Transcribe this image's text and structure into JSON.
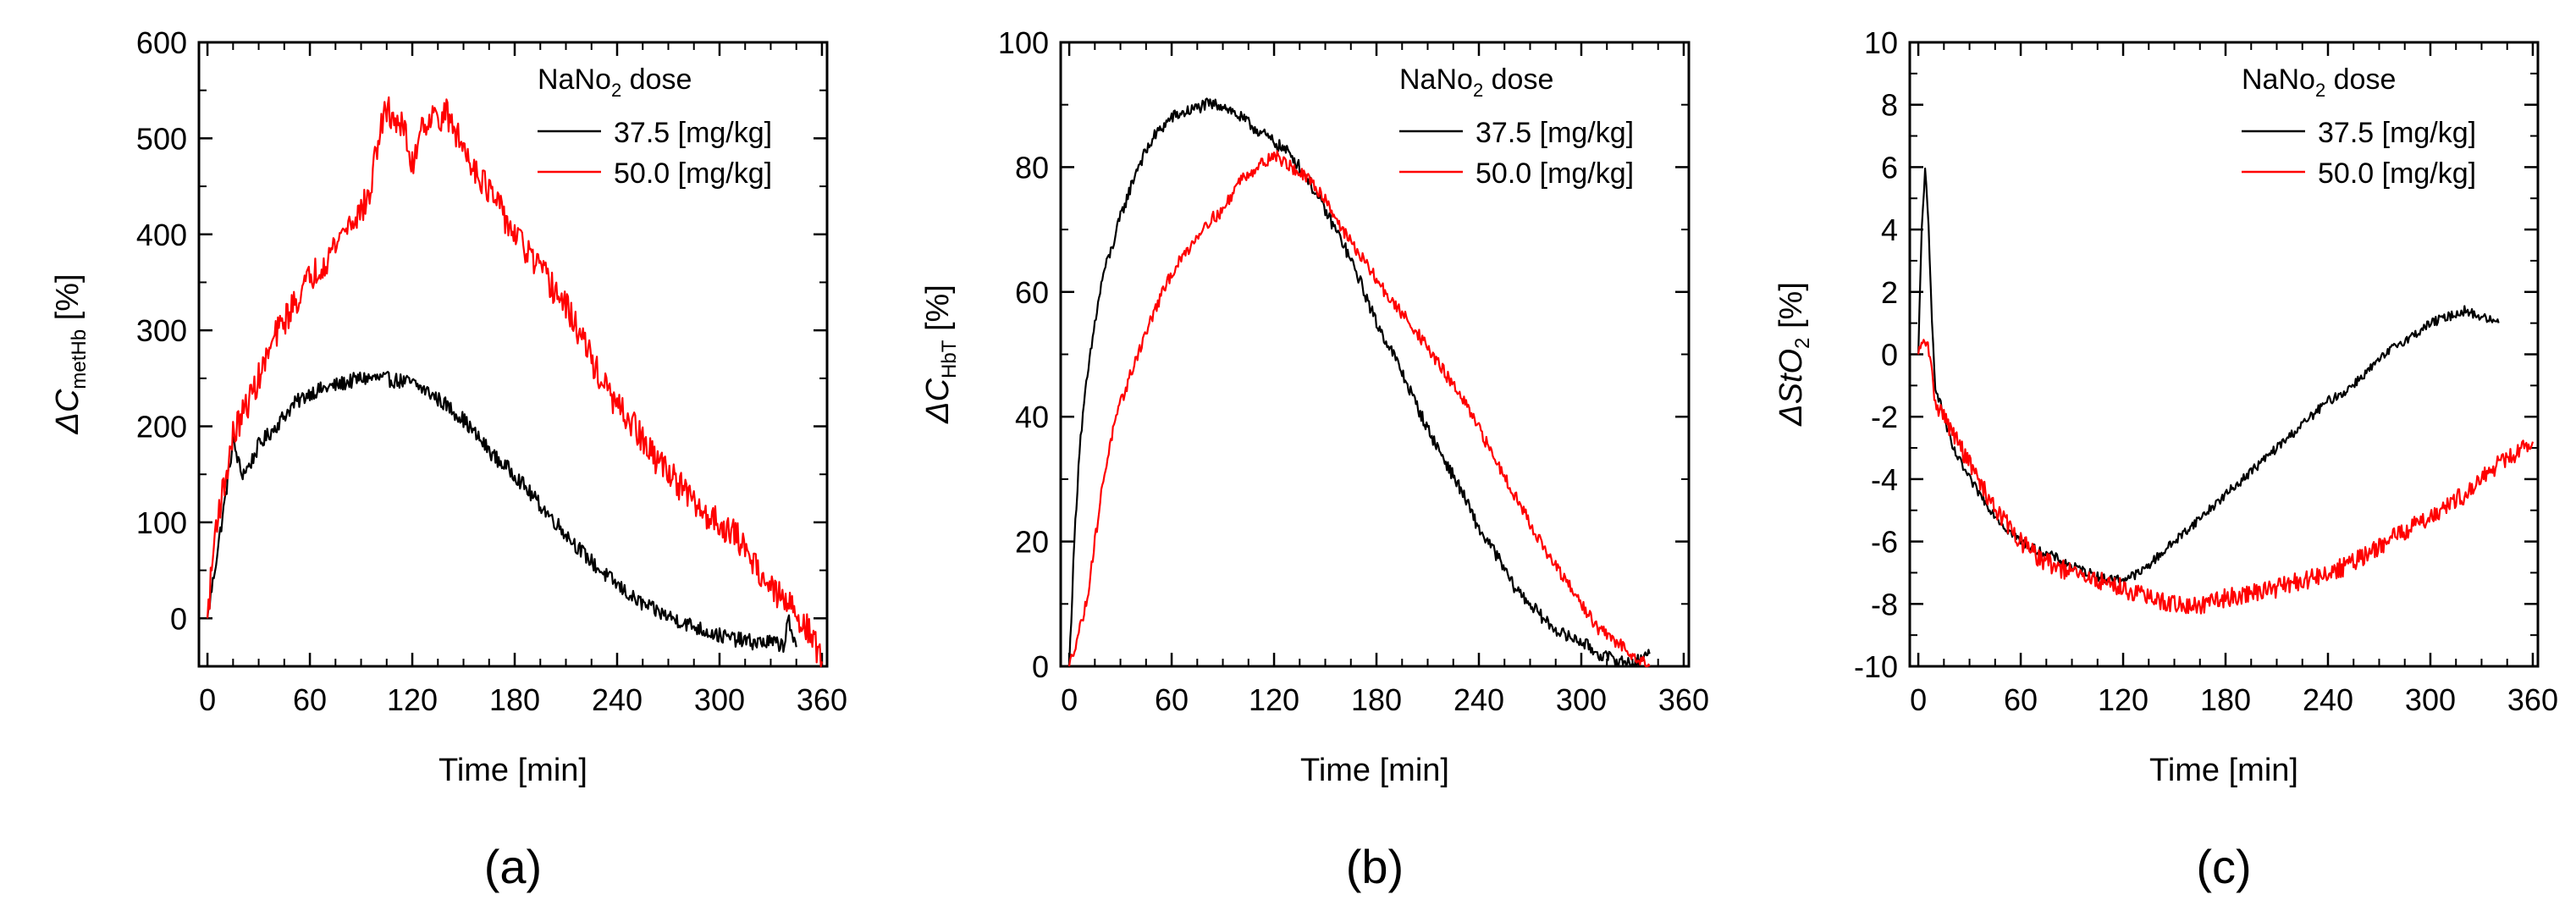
{
  "chart_data": [
    {
      "type": "line",
      "panel_label": "(a)",
      "xlabel": "Time [min]",
      "ylabel": {
        "prefix": "ΔC",
        "sub": "metHb",
        "suffix": " [%]"
      },
      "xlim": [
        -5,
        363
      ],
      "ylim": [
        -50,
        600
      ],
      "xticks": [
        0,
        60,
        120,
        180,
        240,
        300,
        360
      ],
      "yticks": [
        0,
        100,
        200,
        300,
        400,
        500,
        600
      ],
      "ytick_labels": [
        "0",
        "100",
        "200",
        "300",
        "400",
        "500",
        "600"
      ],
      "legend": {
        "title_prefix": "NaNo",
        "title_sub": "2",
        "title_suffix": " dose",
        "position": "top-right"
      },
      "series": [
        {
          "name": "37.5 [mg/kg]",
          "color": "#000000",
          "noise": 8,
          "x": [
            0,
            5,
            10,
            15,
            20,
            25,
            30,
            40,
            50,
            60,
            70,
            80,
            90,
            100,
            110,
            120,
            130,
            140,
            150,
            160,
            170,
            180,
            190,
            200,
            210,
            220,
            230,
            240,
            250,
            260,
            270,
            280,
            290,
            300,
            310,
            320,
            330,
            338,
            340,
            342,
            345
          ],
          "y": [
            0,
            60,
            120,
            185,
            150,
            160,
            180,
            200,
            222,
            235,
            240,
            245,
            250,
            250,
            248,
            245,
            235,
            222,
            207,
            185,
            165,
            150,
            128,
            108,
            88,
            68,
            50,
            35,
            20,
            10,
            2,
            -5,
            -12,
            -18,
            -22,
            -25,
            -25,
            -28,
            5,
            -20,
            -30
          ]
        },
        {
          "name": "50.0 [mg/kg]",
          "color": "#ff0000",
          "noise": 16,
          "x": [
            0,
            5,
            10,
            15,
            20,
            25,
            30,
            40,
            50,
            60,
            70,
            80,
            90,
            95,
            100,
            105,
            110,
            115,
            120,
            125,
            130,
            140,
            150,
            160,
            170,
            180,
            190,
            200,
            210,
            220,
            230,
            240,
            250,
            260,
            270,
            280,
            290,
            300,
            310,
            320,
            330,
            340,
            345,
            350,
            355,
            360
          ],
          "y": [
            0,
            100,
            140,
            190,
            210,
            230,
            250,
            295,
            325,
            355,
            375,
            405,
            425,
            440,
            500,
            530,
            520,
            510,
            470,
            515,
            520,
            525,
            490,
            460,
            430,
            400,
            375,
            350,
            325,
            290,
            250,
            220,
            200,
            170,
            155,
            130,
            110,
            100,
            85,
            60,
            30,
            15,
            5,
            -5,
            -25,
            -45
          ]
        }
      ]
    },
    {
      "type": "line",
      "panel_label": "(b)",
      "xlabel": "Time [min]",
      "ylabel": {
        "prefix": "ΔC",
        "sub": "HbT",
        "suffix": " [%]"
      },
      "xlim": [
        -5,
        363
      ],
      "ylim": [
        0,
        100
      ],
      "xticks": [
        0,
        60,
        120,
        180,
        240,
        300,
        360
      ],
      "yticks": [
        0,
        20,
        40,
        60,
        80,
        100
      ],
      "ytick_labels": [
        "0",
        "20",
        "40",
        "60",
        "80",
        "100"
      ],
      "legend": {
        "title_prefix": "NaNo",
        "title_sub": "2",
        "title_suffix": " dose",
        "position": "top-right"
      },
      "series": [
        {
          "name": "37.5 [mg/kg]",
          "color": "#000000",
          "noise": 1.0,
          "x": [
            0,
            3,
            6,
            10,
            15,
            20,
            25,
            30,
            40,
            50,
            60,
            70,
            80,
            90,
            100,
            110,
            120,
            130,
            140,
            150,
            160,
            170,
            180,
            190,
            200,
            210,
            220,
            230,
            240,
            250,
            260,
            270,
            280,
            290,
            300,
            310,
            320,
            330,
            340
          ],
          "y": [
            0,
            20,
            35,
            45,
            55,
            63,
            67,
            72,
            80,
            85,
            88,
            89,
            90,
            90,
            88,
            86,
            84,
            82,
            78,
            73,
            68,
            62,
            55,
            50,
            44,
            38,
            33,
            28,
            22,
            18,
            13,
            10,
            7,
            5,
            4,
            2,
            1,
            0.5,
            2
          ]
        },
        {
          "name": "50.0 [mg/kg]",
          "color": "#ff0000",
          "noise": 1.0,
          "x": [
            0,
            5,
            10,
            15,
            20,
            25,
            30,
            40,
            50,
            60,
            70,
            80,
            90,
            100,
            110,
            120,
            130,
            140,
            150,
            160,
            170,
            180,
            190,
            200,
            210,
            220,
            230,
            240,
            250,
            260,
            270,
            280,
            290,
            300,
            310,
            320,
            330,
            340
          ],
          "y": [
            0,
            5,
            10,
            20,
            30,
            37,
            42,
            50,
            57,
            63,
            67,
            71,
            73,
            78,
            80,
            82,
            80,
            78,
            75,
            70,
            66,
            62,
            58,
            55,
            51,
            47,
            43,
            38,
            33,
            28,
            23,
            18,
            14,
            10,
            6,
            4,
            2,
            0
          ]
        }
      ]
    },
    {
      "type": "line",
      "panel_label": "(c)",
      "xlabel": "Time [min]",
      "ylabel": {
        "prefix": "ΔStO",
        "sub": "2",
        "suffix": " [%]"
      },
      "xlim": [
        -5,
        363
      ],
      "ylim": [
        -10,
        10
      ],
      "xticks": [
        0,
        60,
        120,
        180,
        240,
        300,
        360
      ],
      "yticks": [
        -10,
        -8,
        -6,
        -4,
        -2,
        0,
        2,
        4,
        6,
        8,
        10
      ],
      "ytick_labels": [
        "-10",
        "-8",
        "-6",
        "-4",
        "-2",
        "0",
        "2",
        "4",
        "6",
        "8",
        "10"
      ],
      "legend": {
        "title_prefix": "NaNo",
        "title_sub": "2",
        "title_suffix": " dose",
        "position": "top-right"
      },
      "series": [
        {
          "name": "37.5 [mg/kg]",
          "color": "#000000",
          "noise": 0.15,
          "x": [
            0,
            2,
            4,
            6,
            8,
            10,
            15,
            20,
            30,
            40,
            50,
            60,
            70,
            80,
            90,
            100,
            110,
            120,
            130,
            140,
            150,
            160,
            170,
            180,
            190,
            200,
            210,
            220,
            230,
            240,
            250,
            260,
            270,
            280,
            290,
            300,
            310,
            320,
            330,
            340
          ],
          "y": [
            0,
            4,
            6,
            4,
            1,
            -1,
            -2,
            -3,
            -4,
            -4.8,
            -5.5,
            -6,
            -6.3,
            -6.5,
            -6.8,
            -7,
            -7.2,
            -7.2,
            -7,
            -6.5,
            -6,
            -5.5,
            -5,
            -4.5,
            -4,
            -3.5,
            -3,
            -2.5,
            -2,
            -1.5,
            -1.2,
            -0.7,
            -0.2,
            0.3,
            0.6,
            1,
            1.2,
            1.4,
            1.2,
            1
          ]
        },
        {
          "name": "50.0 [mg/kg]",
          "color": "#ff0000",
          "noise": 0.3,
          "x": [
            0,
            5,
            10,
            20,
            30,
            40,
            50,
            60,
            70,
            80,
            90,
            100,
            110,
            120,
            130,
            140,
            150,
            160,
            170,
            180,
            190,
            200,
            210,
            220,
            230,
            240,
            250,
            260,
            270,
            280,
            290,
            300,
            310,
            320,
            330,
            340,
            350,
            360
          ],
          "y": [
            0,
            0.5,
            -1.5,
            -2.5,
            -3.5,
            -4.5,
            -5.3,
            -6,
            -6.5,
            -6.8,
            -7,
            -7.2,
            -7.3,
            -7.5,
            -7.7,
            -7.9,
            -8,
            -8.1,
            -8,
            -7.8,
            -7.7,
            -7.6,
            -7.5,
            -7.3,
            -7.2,
            -7,
            -6.8,
            -6.5,
            -6.2,
            -5.8,
            -5.5,
            -5.2,
            -4.8,
            -4.5,
            -4,
            -3.5,
            -3.2,
            -2.8
          ]
        }
      ]
    }
  ]
}
